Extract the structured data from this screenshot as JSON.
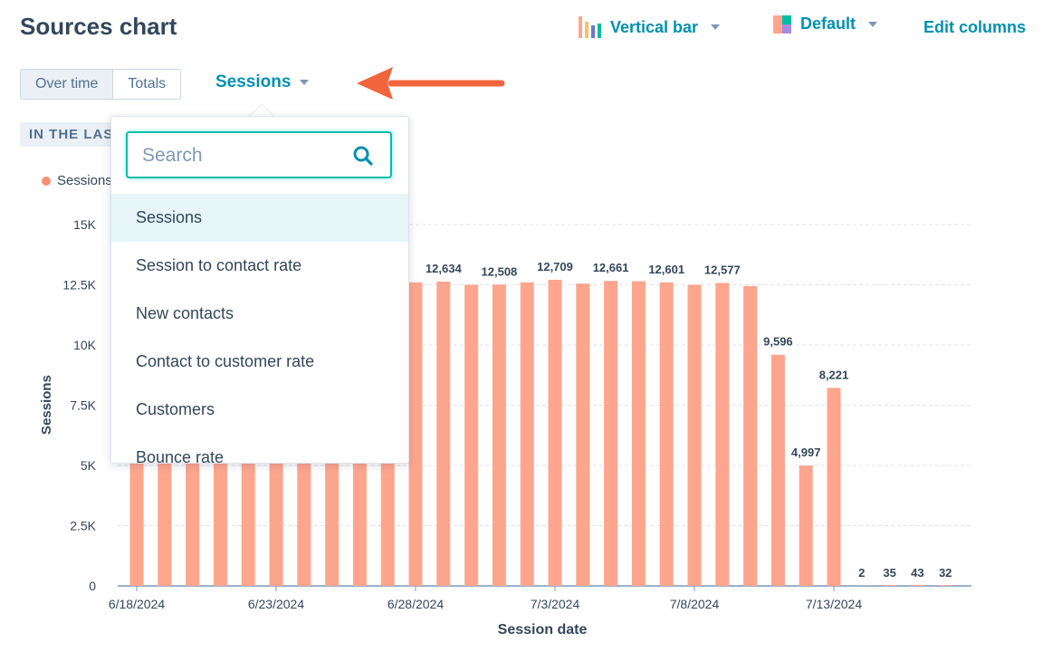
{
  "header": {
    "title": "Sources chart",
    "chart_type_label": "Vertical bar",
    "color_label": "Default",
    "edit_columns_label": "Edit columns"
  },
  "view_toggle": {
    "over_time": "Over time",
    "totals": "Totals"
  },
  "metric_select": {
    "label": "Sessions"
  },
  "period_badge": "IN THE LAS",
  "legend_label": "Sessions",
  "dropdown": {
    "search_placeholder": "Search",
    "items": [
      "Sessions",
      "Session to contact rate",
      "New contacts",
      "Contact to customer rate",
      "Customers",
      "Bounce rate"
    ]
  },
  "colors": {
    "bar": "#fea58e",
    "accent": "#0091ae",
    "focus": "#00bda5",
    "arrow": "#f2643c"
  },
  "chart_data": {
    "type": "bar",
    "xlabel": "Session date",
    "ylabel": "Sessions",
    "ylim": [
      0,
      15000
    ],
    "yticks": [
      0,
      2500,
      5000,
      7500,
      10000,
      12500,
      15000
    ],
    "ytick_labels": [
      "0",
      "2.5K",
      "5K",
      "7.5K",
      "10K",
      "12.5K",
      "15K"
    ],
    "categories": [
      "6/18/2024",
      "6/19/2024",
      "6/20/2024",
      "6/21/2024",
      "6/22/2024",
      "6/23/2024",
      "6/24/2024",
      "6/25/2024",
      "6/26/2024",
      "6/27/2024",
      "6/28/2024",
      "6/29/2024",
      "6/30/2024",
      "7/1/2024",
      "7/2/2024",
      "7/3/2024",
      "7/4/2024",
      "7/5/2024",
      "7/6/2024",
      "7/7/2024",
      "7/8/2024",
      "7/9/2024",
      "7/10/2024",
      "7/11/2024",
      "7/12/2024",
      "7/13/2024",
      "7/14/2024",
      "7/15/2024",
      "7/16/2024",
      "7/17/2024"
    ],
    "xtick_labels": [
      "6/18/2024",
      "6/23/2024",
      "6/28/2024",
      "7/3/2024",
      "7/8/2024",
      "7/13/2024"
    ],
    "xtick_index": [
      0,
      5,
      10,
      15,
      20,
      25
    ],
    "series": [
      {
        "name": "Sessions",
        "values": [
          12500,
          12500,
          12500,
          12500,
          12500,
          12500,
          12500,
          12500,
          12500,
          12500,
          12600,
          12634,
          12500,
          12508,
          12600,
          12709,
          12550,
          12661,
          12650,
          12601,
          12500,
          12577,
          12450,
          9596,
          4997,
          8221,
          2,
          35,
          43,
          32
        ]
      }
    ],
    "data_labels": [
      {
        "index": 11,
        "text": "12,634"
      },
      {
        "index": 13,
        "text": "12,508"
      },
      {
        "index": 15,
        "text": "12,709"
      },
      {
        "index": 17,
        "text": "12,661"
      },
      {
        "index": 19,
        "text": "12,601"
      },
      {
        "index": 21,
        "text": "12,577"
      },
      {
        "index": 23,
        "text": "9,596"
      },
      {
        "index": 24,
        "text": "4,997"
      },
      {
        "index": 25,
        "text": "8,221"
      },
      {
        "index": 26,
        "text": "2"
      },
      {
        "index": 27,
        "text": "35"
      },
      {
        "index": 28,
        "text": "43"
      },
      {
        "index": 29,
        "text": "32"
      }
    ],
    "grid": true
  }
}
